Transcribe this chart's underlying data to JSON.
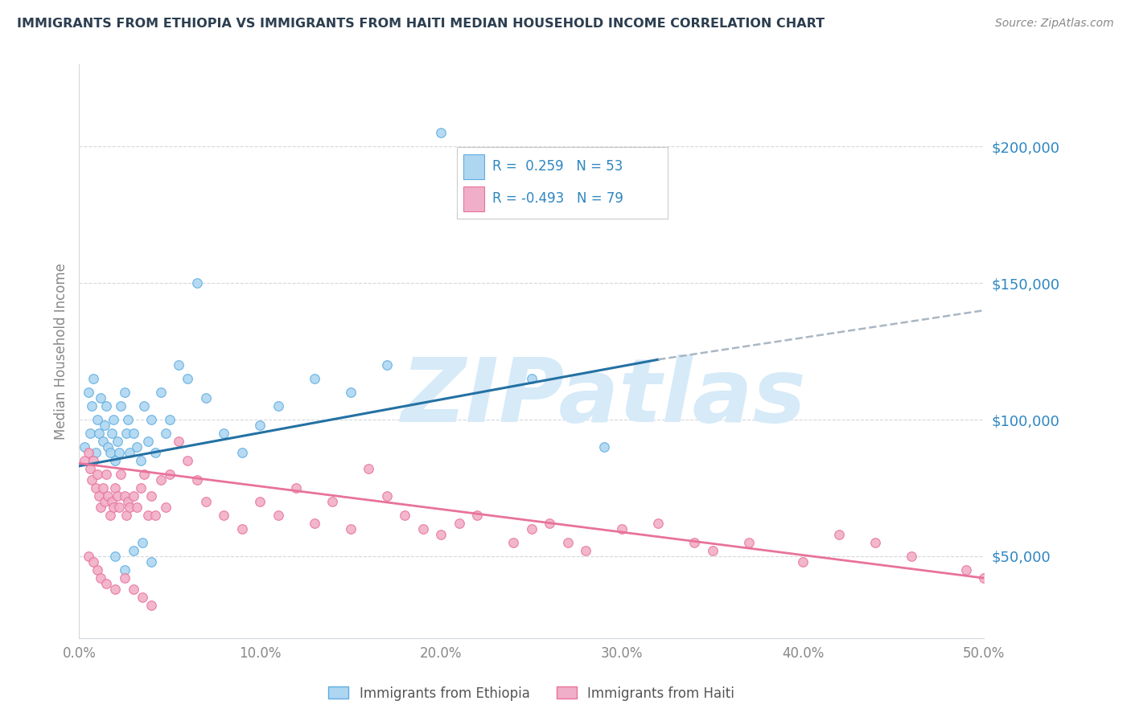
{
  "title": "IMMIGRANTS FROM ETHIOPIA VS IMMIGRANTS FROM HAITI MEDIAN HOUSEHOLD INCOME CORRELATION CHART",
  "source": "Source: ZipAtlas.com",
  "ylabel": "Median Household Income",
  "xlim": [
    0.0,
    0.5
  ],
  "ylim": [
    20000,
    230000
  ],
  "xticks": [
    0.0,
    0.1,
    0.2,
    0.3,
    0.4,
    0.5
  ],
  "xticklabels": [
    "0.0%",
    "10.0%",
    "20.0%",
    "30.0%",
    "40.0%",
    "50.0%"
  ],
  "yticks": [
    50000,
    100000,
    150000,
    200000
  ],
  "yticklabels": [
    "$50,000",
    "$100,000",
    "$150,000",
    "$200,000"
  ],
  "ethiopia_color": "#aed6f1",
  "haiti_color": "#f1aec8",
  "ethiopia_edge": "#5dade2",
  "haiti_edge": "#e8739a",
  "background_color": "#ffffff",
  "grid_color": "#d5d8dc",
  "axis_label_color": "#2e86c1",
  "title_color": "#2c3e50",
  "watermark": "ZIPatlas",
  "watermark_color": "#d6eaf8",
  "ethiopia_scatter_x": [
    0.003,
    0.005,
    0.006,
    0.007,
    0.008,
    0.009,
    0.01,
    0.011,
    0.012,
    0.013,
    0.014,
    0.015,
    0.016,
    0.017,
    0.018,
    0.019,
    0.02,
    0.021,
    0.022,
    0.023,
    0.025,
    0.026,
    0.027,
    0.028,
    0.03,
    0.032,
    0.034,
    0.036,
    0.038,
    0.04,
    0.042,
    0.045,
    0.048,
    0.05,
    0.055,
    0.06,
    0.065,
    0.07,
    0.08,
    0.09,
    0.1,
    0.11,
    0.13,
    0.15,
    0.17,
    0.2,
    0.25,
    0.29,
    0.02,
    0.025,
    0.03,
    0.035,
    0.04
  ],
  "ethiopia_scatter_y": [
    90000,
    110000,
    95000,
    105000,
    115000,
    88000,
    100000,
    95000,
    108000,
    92000,
    98000,
    105000,
    90000,
    88000,
    95000,
    100000,
    85000,
    92000,
    88000,
    105000,
    110000,
    95000,
    100000,
    88000,
    95000,
    90000,
    85000,
    105000,
    92000,
    100000,
    88000,
    110000,
    95000,
    100000,
    120000,
    115000,
    150000,
    108000,
    95000,
    88000,
    98000,
    105000,
    115000,
    110000,
    120000,
    205000,
    115000,
    90000,
    50000,
    45000,
    52000,
    55000,
    48000
  ],
  "haiti_scatter_x": [
    0.003,
    0.005,
    0.006,
    0.007,
    0.008,
    0.009,
    0.01,
    0.011,
    0.012,
    0.013,
    0.014,
    0.015,
    0.016,
    0.017,
    0.018,
    0.019,
    0.02,
    0.021,
    0.022,
    0.023,
    0.025,
    0.026,
    0.027,
    0.028,
    0.03,
    0.032,
    0.034,
    0.036,
    0.038,
    0.04,
    0.042,
    0.045,
    0.048,
    0.05,
    0.055,
    0.06,
    0.065,
    0.07,
    0.08,
    0.09,
    0.1,
    0.11,
    0.12,
    0.13,
    0.14,
    0.15,
    0.16,
    0.17,
    0.18,
    0.19,
    0.2,
    0.21,
    0.22,
    0.24,
    0.25,
    0.26,
    0.27,
    0.28,
    0.3,
    0.32,
    0.34,
    0.35,
    0.37,
    0.4,
    0.42,
    0.44,
    0.46,
    0.49,
    0.5,
    0.005,
    0.008,
    0.01,
    0.012,
    0.015,
    0.02,
    0.025,
    0.03,
    0.035,
    0.04
  ],
  "haiti_scatter_y": [
    85000,
    88000,
    82000,
    78000,
    85000,
    75000,
    80000,
    72000,
    68000,
    75000,
    70000,
    80000,
    72000,
    65000,
    70000,
    68000,
    75000,
    72000,
    68000,
    80000,
    72000,
    65000,
    70000,
    68000,
    72000,
    68000,
    75000,
    80000,
    65000,
    72000,
    65000,
    78000,
    68000,
    80000,
    92000,
    85000,
    78000,
    70000,
    65000,
    60000,
    70000,
    65000,
    75000,
    62000,
    70000,
    60000,
    82000,
    72000,
    65000,
    60000,
    58000,
    62000,
    65000,
    55000,
    60000,
    62000,
    55000,
    52000,
    60000,
    62000,
    55000,
    52000,
    55000,
    48000,
    58000,
    55000,
    50000,
    45000,
    42000,
    50000,
    48000,
    45000,
    42000,
    40000,
    38000,
    42000,
    38000,
    35000,
    32000
  ],
  "ethiopia_trend_x0": 0.0,
  "ethiopia_trend_x1": 0.32,
  "ethiopia_trend_y0": 83000,
  "ethiopia_trend_y1": 122000,
  "gray_trend_x0": 0.32,
  "gray_trend_x1": 0.5,
  "gray_trend_y0": 122000,
  "gray_trend_y1": 140000,
  "haiti_trend_x0": 0.0,
  "haiti_trend_x1": 0.5,
  "haiti_trend_y0": 84000,
  "haiti_trend_y1": 42000,
  "legend_R_ethiopia": "R =  0.259",
  "legend_N_ethiopia": "N = 53",
  "legend_R_haiti": "R = -0.493",
  "legend_N_haiti": "N = 79",
  "legend_label_ethiopia": "Immigrants from Ethiopia",
  "legend_label_haiti": "Immigrants from Haiti"
}
